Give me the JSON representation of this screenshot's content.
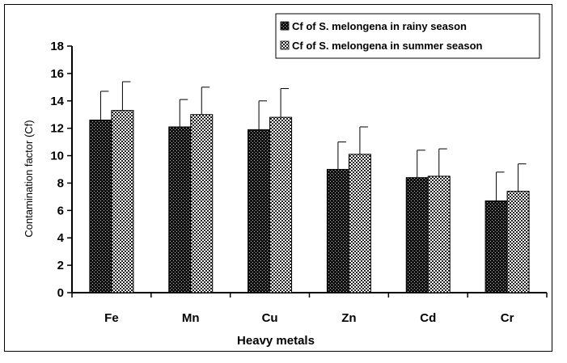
{
  "chart_data": {
    "type": "bar",
    "xlabel": "Heavy metals",
    "ylabel": "Contamination factor (Cf)",
    "ylim": [
      0,
      18
    ],
    "ytick_step": 2,
    "categories": [
      "Fe",
      "Mn",
      "Cu",
      "Zn",
      "Cd",
      "Cr"
    ],
    "series": [
      {
        "name": "Cf of S. melongena  in rainy season",
        "values": [
          12.6,
          12.1,
          11.9,
          9.0,
          8.4,
          6.7
        ],
        "errors": [
          2.1,
          2.0,
          2.1,
          2.0,
          2.0,
          2.1
        ],
        "pattern": "dark-dots"
      },
      {
        "name": "Cf of S. melongena  in summer season",
        "values": [
          13.3,
          13.0,
          12.8,
          10.1,
          8.5,
          7.4
        ],
        "errors": [
          2.1,
          2.0,
          2.1,
          2.0,
          2.0,
          2.0
        ],
        "pattern": "light-dots"
      }
    ],
    "legend_position": "top-right",
    "grid": false
  }
}
